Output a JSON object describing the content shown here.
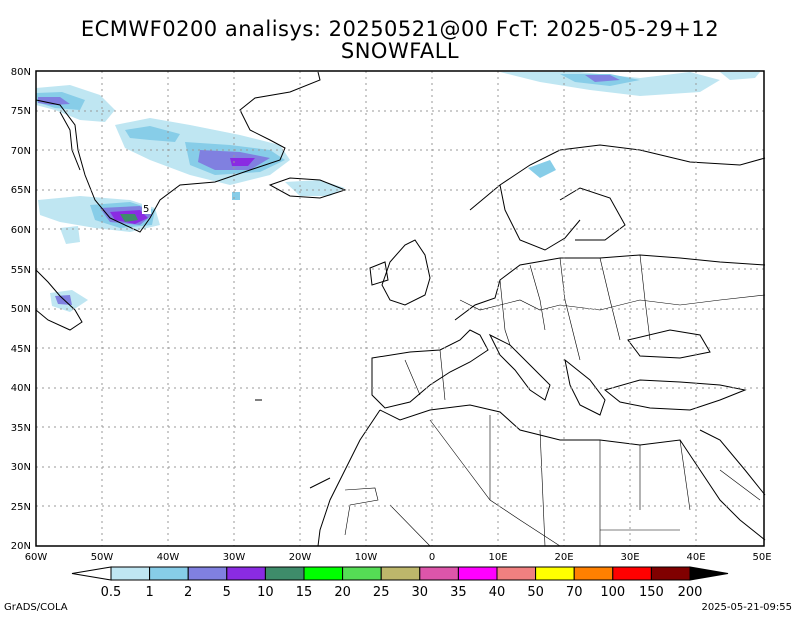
{
  "header": {
    "title_line1": "ECMWF0200 analisys: 20250521@00 FcT: 2025-05-29+12",
    "title_line2": "SNOWFALL"
  },
  "map": {
    "lat_labels": [
      "80N",
      "75N",
      "70N",
      "65N",
      "60N",
      "55N",
      "50N",
      "45N",
      "40N",
      "35N",
      "30N",
      "25N",
      "20N"
    ],
    "lon_labels": [
      "60W",
      "50W",
      "40W",
      "30W",
      "20W",
      "10W",
      "0",
      "10E",
      "20E",
      "30E",
      "40E",
      "50E"
    ],
    "contour_label": "5"
  },
  "colorbar": {
    "ticks": [
      "0.5",
      "1",
      "2",
      "5",
      "10",
      "15",
      "20",
      "25",
      "30",
      "35",
      "40",
      "50",
      "70",
      "100",
      "150",
      "200"
    ],
    "colors": [
      "#bfe6f2",
      "#87cde8",
      "#8080e0",
      "#8a2be2",
      "#3e8c6a",
      "#00ff00",
      "#55dd55",
      "#bdb76b",
      "#dd55aa",
      "#ff00ff",
      "#f08080",
      "#ffff00",
      "#ff8000",
      "#ff0000",
      "#800000"
    ]
  },
  "footer": {
    "left": "GrADS/COLA",
    "right": "2025-05-21-09:55"
  }
}
